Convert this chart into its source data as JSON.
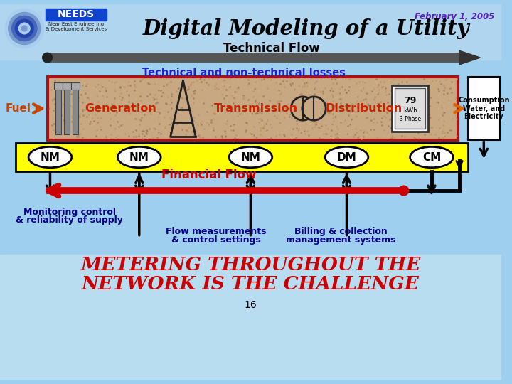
{
  "title": "Digital Modeling of a Utility",
  "subtitle": "Technical Flow",
  "date": "February 1, 2005",
  "losses_label": "Technical and non-technical losses",
  "flow_sections": [
    "Generation",
    "Transmission",
    "Distribution"
  ],
  "nm_labels": [
    "NM",
    "NM",
    "NM",
    "DM",
    "CM"
  ],
  "financial_flow_label": "Financial Flow",
  "fuel_label": "Fuel",
  "consumption_label": "Consumption\nWater, and\nElectricity",
  "bottom_labels_col1_line1": "Monitoring control",
  "bottom_labels_col1_line2": "& reliability of supply",
  "bottom_labels_col2_line1": "Flow measurements",
  "bottom_labels_col2_line2": "& control settings",
  "bottom_labels_col3_line1": "Billing & collection",
  "bottom_labels_col3_line2": "management systems",
  "bottom_text_line1": "METERING THROUGHOUT THE",
  "bottom_text_line2": "NETWORK IS THE CHALLENGE",
  "page_number": "16",
  "bg_color": "#9ecfee",
  "flow_bar_color": "#c8a882",
  "flow_bar_border": "#aa1111",
  "yellow_bar_color": "#ffff00",
  "yellow_bar_border": "#000000",
  "red_arrow_color": "#cc0000",
  "title_color": "#000000",
  "losses_color": "#2222cc",
  "fuel_color": "#cc4400",
  "section_label_color": "#cc2200",
  "financial_flow_color": "#cc0000",
  "bottom_label_color": "#00008b",
  "challenge_color": "#cc0000",
  "date_color": "#5522bb",
  "consumption_box_color": "#ffffff",
  "consumption_border_color": "#000000"
}
